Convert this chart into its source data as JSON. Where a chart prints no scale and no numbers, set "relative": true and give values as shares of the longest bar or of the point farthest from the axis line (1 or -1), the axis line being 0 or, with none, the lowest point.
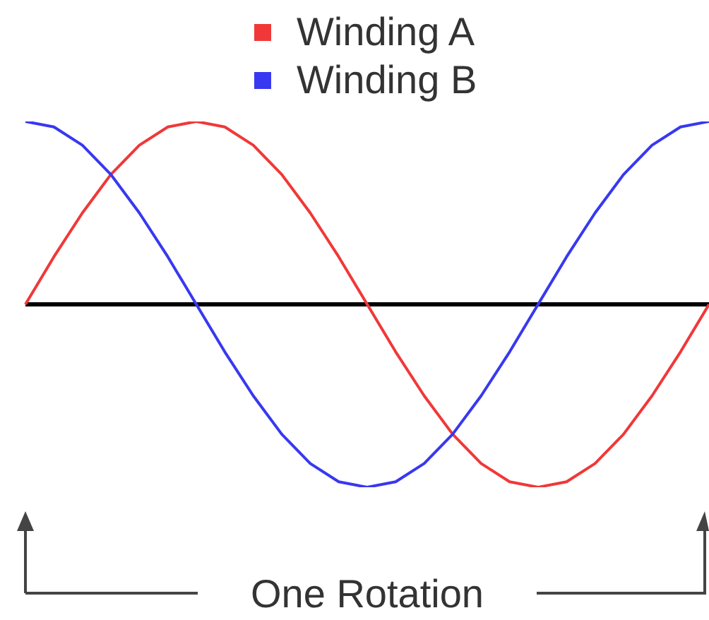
{
  "chart_data": {
    "type": "line",
    "relative": true,
    "categories": [
      null,
      null,
      null,
      null,
      null,
      null,
      null,
      null,
      null,
      null,
      null,
      null,
      null,
      null,
      null,
      null,
      null,
      null,
      null,
      null,
      null,
      null,
      null,
      null,
      null
    ],
    "series": [
      {
        "name": "Winding A",
        "color": "#f03838",
        "values": [
          0,
          0.26,
          0.5,
          0.71,
          0.87,
          0.97,
          1,
          0.97,
          0.87,
          0.71,
          0.5,
          0.26,
          0,
          -0.26,
          -0.5,
          -0.71,
          -0.87,
          -0.97,
          -1,
          -0.97,
          -0.87,
          -0.71,
          -0.5,
          -0.26,
          0
        ]
      },
      {
        "name": "Winding B",
        "color": "#3838f0",
        "values": [
          1,
          0.97,
          0.87,
          0.71,
          0.5,
          0.26,
          0,
          -0.26,
          -0.5,
          -0.71,
          -0.87,
          -0.97,
          -1,
          -0.97,
          -0.87,
          -0.71,
          -0.5,
          -0.26,
          0,
          0.26,
          0.5,
          0.71,
          0.87,
          0.97,
          1
        ]
      }
    ],
    "legend": "top",
    "marker": "none",
    "line_style": "solid",
    "grid": false,
    "annotations": [
      "One Rotation"
    ]
  }
}
